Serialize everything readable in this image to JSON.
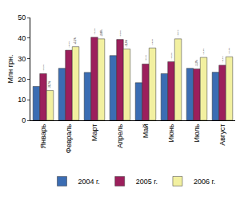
{
  "chart_data": {
    "type": "bar",
    "y_label": "Млн грн.",
    "categories": [
      "Январь",
      "Февраль",
      "Март",
      "Апрель",
      "Май",
      "Июнь",
      "Июль",
      "Август"
    ],
    "series": [
      {
        "name": "2004 г.",
        "color": "#3b6db3",
        "values": [
          16.5,
          25.3,
          23.3,
          31.5,
          18.3,
          22.7,
          25.3,
          23.4
        ]
      },
      {
        "name": "2005 г.",
        "color": "#9c1f5c",
        "values": [
          22.7,
          34.1,
          40.4,
          39.3,
          27.4,
          28.5,
          25.0,
          26.8
        ],
        "annotations": [
          "+37,9%",
          "+34,7%",
          "+73,5%",
          "+24,8%",
          "+49,7%",
          "+25,5%",
          "-1,2%",
          "+14,6%"
        ]
      },
      {
        "name": "2006 г.",
        "color": "#f2f0a0",
        "values": [
          14.5,
          35.8,
          39.6,
          34.7,
          35.2,
          39.6,
          30.6,
          30.9
        ],
        "annotations": [
          "-36,2%",
          "+5,1%",
          "-2,0%",
          "-11,6%",
          "+28,5%",
          "+38,9%",
          "+22,5%",
          "+15,4%"
        ]
      }
    ],
    "ylim": [
      0,
      50
    ],
    "yticks": [
      0,
      10,
      20,
      30,
      40,
      50
    ],
    "grid": false,
    "legend": "bottom"
  }
}
